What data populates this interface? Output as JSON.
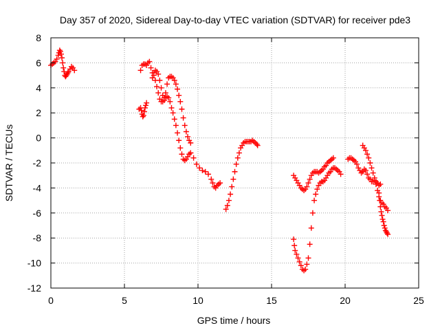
{
  "chart_data": {
    "type": "scatter",
    "title": "Day 357 of 2020, Sidereal Day-to-day VTEC variation (SDTVAR) for receiver pde3",
    "xlabel": "GPS time / hours",
    "ylabel": "SDTVAR / TECUs",
    "xlim": [
      0,
      25
    ],
    "ylim": [
      -12,
      8
    ],
    "xticks": [
      "0",
      "5",
      "10",
      "15",
      "20",
      "25"
    ],
    "yticks": [
      "-12",
      "-10",
      "-8",
      "-6",
      "-4",
      "-2",
      "0",
      "2",
      "4",
      "6",
      "8"
    ],
    "grid": true,
    "marker": "+",
    "colors": {
      "series": "#ff0000",
      "grid": "#a0a0a0",
      "axes": "#000000"
    },
    "series": [
      {
        "x": [
          0.0,
          0.1,
          0.2,
          0.3,
          0.4,
          0.5,
          0.55,
          0.6,
          0.65,
          0.7,
          0.75,
          0.8,
          0.85,
          0.9,
          0.95,
          1.0,
          1.05,
          1.1,
          1.15,
          1.2,
          1.3,
          1.4,
          1.5,
          1.6
        ],
        "y": [
          5.8,
          5.9,
          6.0,
          6.1,
          6.3,
          6.6,
          6.8,
          7.0,
          6.9,
          6.7,
          6.4,
          6.0,
          5.6,
          5.3,
          5.0,
          4.9,
          5.0,
          5.1,
          5.2,
          5.3,
          5.5,
          5.7,
          5.6,
          5.4
        ]
      },
      {
        "x": [
          6.0,
          6.1,
          6.15,
          6.2,
          6.25,
          6.3,
          6.35,
          6.4,
          6.45,
          6.5
        ],
        "y": [
          2.3,
          2.4,
          2.2,
          1.9,
          1.7,
          1.8,
          2.1,
          2.4,
          2.6,
          2.8
        ]
      },
      {
        "x": [
          6.1,
          6.2,
          6.3,
          6.4,
          6.5,
          6.6,
          6.7,
          6.8,
          6.9,
          7.0,
          7.1,
          7.2,
          7.3,
          7.4,
          7.5,
          7.6,
          7.7,
          7.8,
          7.9,
          8.0,
          8.1,
          8.2,
          8.3,
          8.4,
          8.5,
          8.6,
          8.7,
          8.8,
          8.9,
          9.0,
          9.1,
          9.2,
          9.3,
          9.4,
          9.5
        ],
        "y": [
          5.4,
          5.8,
          5.9,
          5.9,
          5.8,
          6.0,
          6.1,
          5.6,
          5.2,
          5.0,
          4.6,
          4.1,
          3.6,
          3.1,
          2.9,
          2.9,
          3.0,
          3.2,
          3.3,
          3.2,
          2.9,
          2.4,
          2.0,
          1.5,
          1.0,
          0.4,
          -0.2,
          -0.8,
          -1.3,
          -1.7,
          -1.8,
          -1.7,
          -1.5,
          -1.3,
          -1.2
        ]
      },
      {
        "x": [
          6.9,
          7.0,
          7.1,
          7.2,
          7.3,
          7.4,
          7.5,
          7.6,
          7.7,
          7.8,
          7.9,
          8.0,
          8.1,
          8.2,
          8.3,
          8.4,
          8.5,
          8.6,
          8.7,
          8.8,
          8.9,
          9.0,
          9.1,
          9.2,
          9.3,
          9.4,
          9.5
        ],
        "y": [
          4.8,
          5.2,
          5.4,
          5.3,
          5.1,
          4.6,
          4.0,
          3.4,
          3.2,
          3.6,
          4.3,
          4.8,
          4.9,
          4.9,
          4.8,
          4.6,
          4.3,
          3.9,
          3.4,
          2.9,
          2.3,
          1.6,
          1.0,
          0.5,
          0.1,
          -0.2,
          -0.4
        ]
      },
      {
        "x": [
          9.5,
          9.7,
          9.9,
          10.1,
          10.3,
          10.5,
          10.7,
          10.9,
          11.0,
          11.1,
          11.2,
          11.3,
          11.4,
          11.5
        ],
        "y": [
          -1.2,
          -1.6,
          -2.1,
          -2.4,
          -2.6,
          -2.7,
          -2.9,
          -3.3,
          -3.6,
          -3.9,
          -4.0,
          -3.8,
          -3.7,
          -3.6
        ]
      },
      {
        "x": [
          11.9,
          12.0,
          12.1,
          12.2,
          12.3,
          12.4,
          12.5,
          12.6,
          12.7,
          12.8,
          12.9,
          13.0,
          13.1,
          13.2,
          13.3,
          13.4,
          13.5,
          13.6,
          13.7,
          13.8,
          13.9,
          14.0,
          14.05
        ],
        "y": [
          -5.7,
          -5.4,
          -5.0,
          -4.5,
          -3.9,
          -3.3,
          -2.7,
          -2.1,
          -1.6,
          -1.2,
          -0.8,
          -0.6,
          -0.4,
          -0.3,
          -0.3,
          -0.3,
          -0.3,
          -0.3,
          -0.2,
          -0.3,
          -0.4,
          -0.5,
          -0.6
        ]
      },
      {
        "x": [
          16.5,
          16.6,
          16.7,
          16.8,
          16.9,
          17.0,
          17.1,
          17.2,
          17.3,
          17.4,
          17.5,
          17.6,
          17.7,
          17.8,
          17.9,
          18.0,
          18.1,
          18.2,
          18.3,
          18.4,
          18.5,
          18.6,
          18.7,
          18.8,
          18.9,
          19.0,
          19.1,
          19.2
        ],
        "y": [
          -3.0,
          -3.2,
          -3.4,
          -3.6,
          -3.8,
          -4.0,
          -4.1,
          -4.2,
          -4.1,
          -3.9,
          -3.6,
          -3.3,
          -3.0,
          -2.8,
          -2.7,
          -2.7,
          -2.7,
          -2.8,
          -2.7,
          -2.6,
          -2.5,
          -2.3,
          -2.2,
          -2.0,
          -1.9,
          -1.8,
          -1.7,
          -1.6
        ]
      },
      {
        "x": [
          16.5,
          16.55,
          16.6,
          16.7,
          16.8,
          16.9,
          17.0,
          17.1,
          17.2,
          17.3,
          17.4,
          17.5,
          17.6,
          17.7,
          17.8,
          17.9,
          18.0,
          18.1,
          18.2,
          18.3,
          18.4,
          18.5,
          18.6,
          18.7,
          18.8,
          18.9,
          19.0,
          19.1,
          19.2,
          19.3,
          19.4,
          19.5,
          19.6,
          19.7
        ],
        "y": [
          -8.1,
          -8.6,
          -9.0,
          -9.3,
          -9.6,
          -9.9,
          -10.2,
          -10.5,
          -10.6,
          -10.5,
          -10.1,
          -9.6,
          -8.5,
          -7.2,
          -6.0,
          -5.0,
          -4.5,
          -4.1,
          -3.8,
          -3.6,
          -3.5,
          -3.5,
          -3.4,
          -3.2,
          -3.0,
          -2.8,
          -2.7,
          -2.5,
          -2.4,
          -2.4,
          -2.5,
          -2.6,
          -2.7,
          -2.9
        ]
      },
      {
        "x": [
          20.2,
          20.3,
          20.4,
          20.5,
          20.6,
          20.7,
          20.8,
          20.9,
          21.0,
          21.1,
          21.2,
          21.3,
          21.4,
          21.5,
          21.6,
          21.7,
          21.8,
          21.9,
          22.0,
          22.1,
          22.2,
          22.3,
          22.4
        ],
        "y": [
          -1.7,
          -1.6,
          -1.6,
          -1.7,
          -1.8,
          -1.9,
          -2.1,
          -2.4,
          -2.6,
          -2.8,
          -2.7,
          -2.5,
          -2.6,
          -2.9,
          -3.2,
          -3.3,
          -3.5,
          -3.5,
          -3.4,
          -3.5,
          -3.6,
          -3.8,
          -3.7
        ]
      },
      {
        "x": [
          21.2,
          21.3,
          21.4,
          21.5,
          21.6,
          21.7,
          21.8,
          21.9,
          22.0,
          22.1,
          22.2,
          22.3,
          22.4,
          22.5,
          22.6,
          22.7,
          22.8,
          22.9
        ],
        "y": [
          -0.6,
          -0.8,
          -1.0,
          -1.3,
          -1.6,
          -2.0,
          -2.4,
          -2.8,
          -3.2,
          -3.7,
          -4.2,
          -4.7,
          -5.0,
          -5.2,
          -5.3,
          -5.5,
          -5.6,
          -5.8
        ]
      },
      {
        "x": [
          22.3,
          22.35,
          22.4,
          22.45,
          22.5,
          22.55,
          22.6,
          22.65,
          22.7,
          22.75,
          22.8,
          22.85,
          22.9
        ],
        "y": [
          -4.4,
          -5.0,
          -5.5,
          -5.9,
          -6.2,
          -6.5,
          -6.7,
          -7.0,
          -7.2,
          -7.4,
          -7.5,
          -7.6,
          -7.7
        ]
      }
    ]
  }
}
